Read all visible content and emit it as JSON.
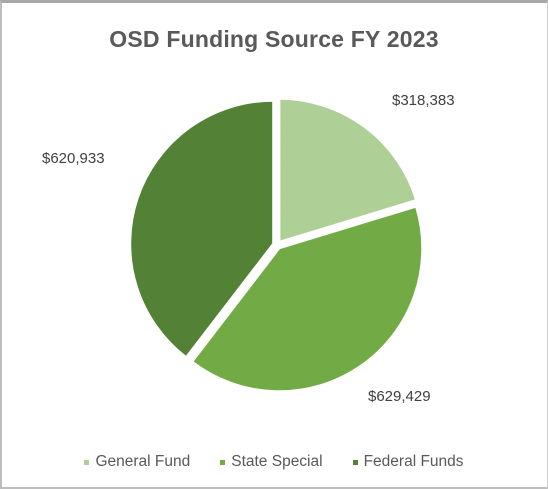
{
  "chart_data": {
    "type": "pie",
    "title": "OSD Funding Source FY 2023",
    "slices": [
      {
        "name": "General Fund",
        "value": 318383,
        "label": "$318,383",
        "color": "#aecf96"
      },
      {
        "name": "State Special",
        "value": 629429,
        "label": "$629,429",
        "color": "#72ab45"
      },
      {
        "name": "Federal Funds",
        "value": 620933,
        "label": "$620,933",
        "color": "#538135"
      }
    ],
    "legend_position": "bottom",
    "exploded": true
  }
}
